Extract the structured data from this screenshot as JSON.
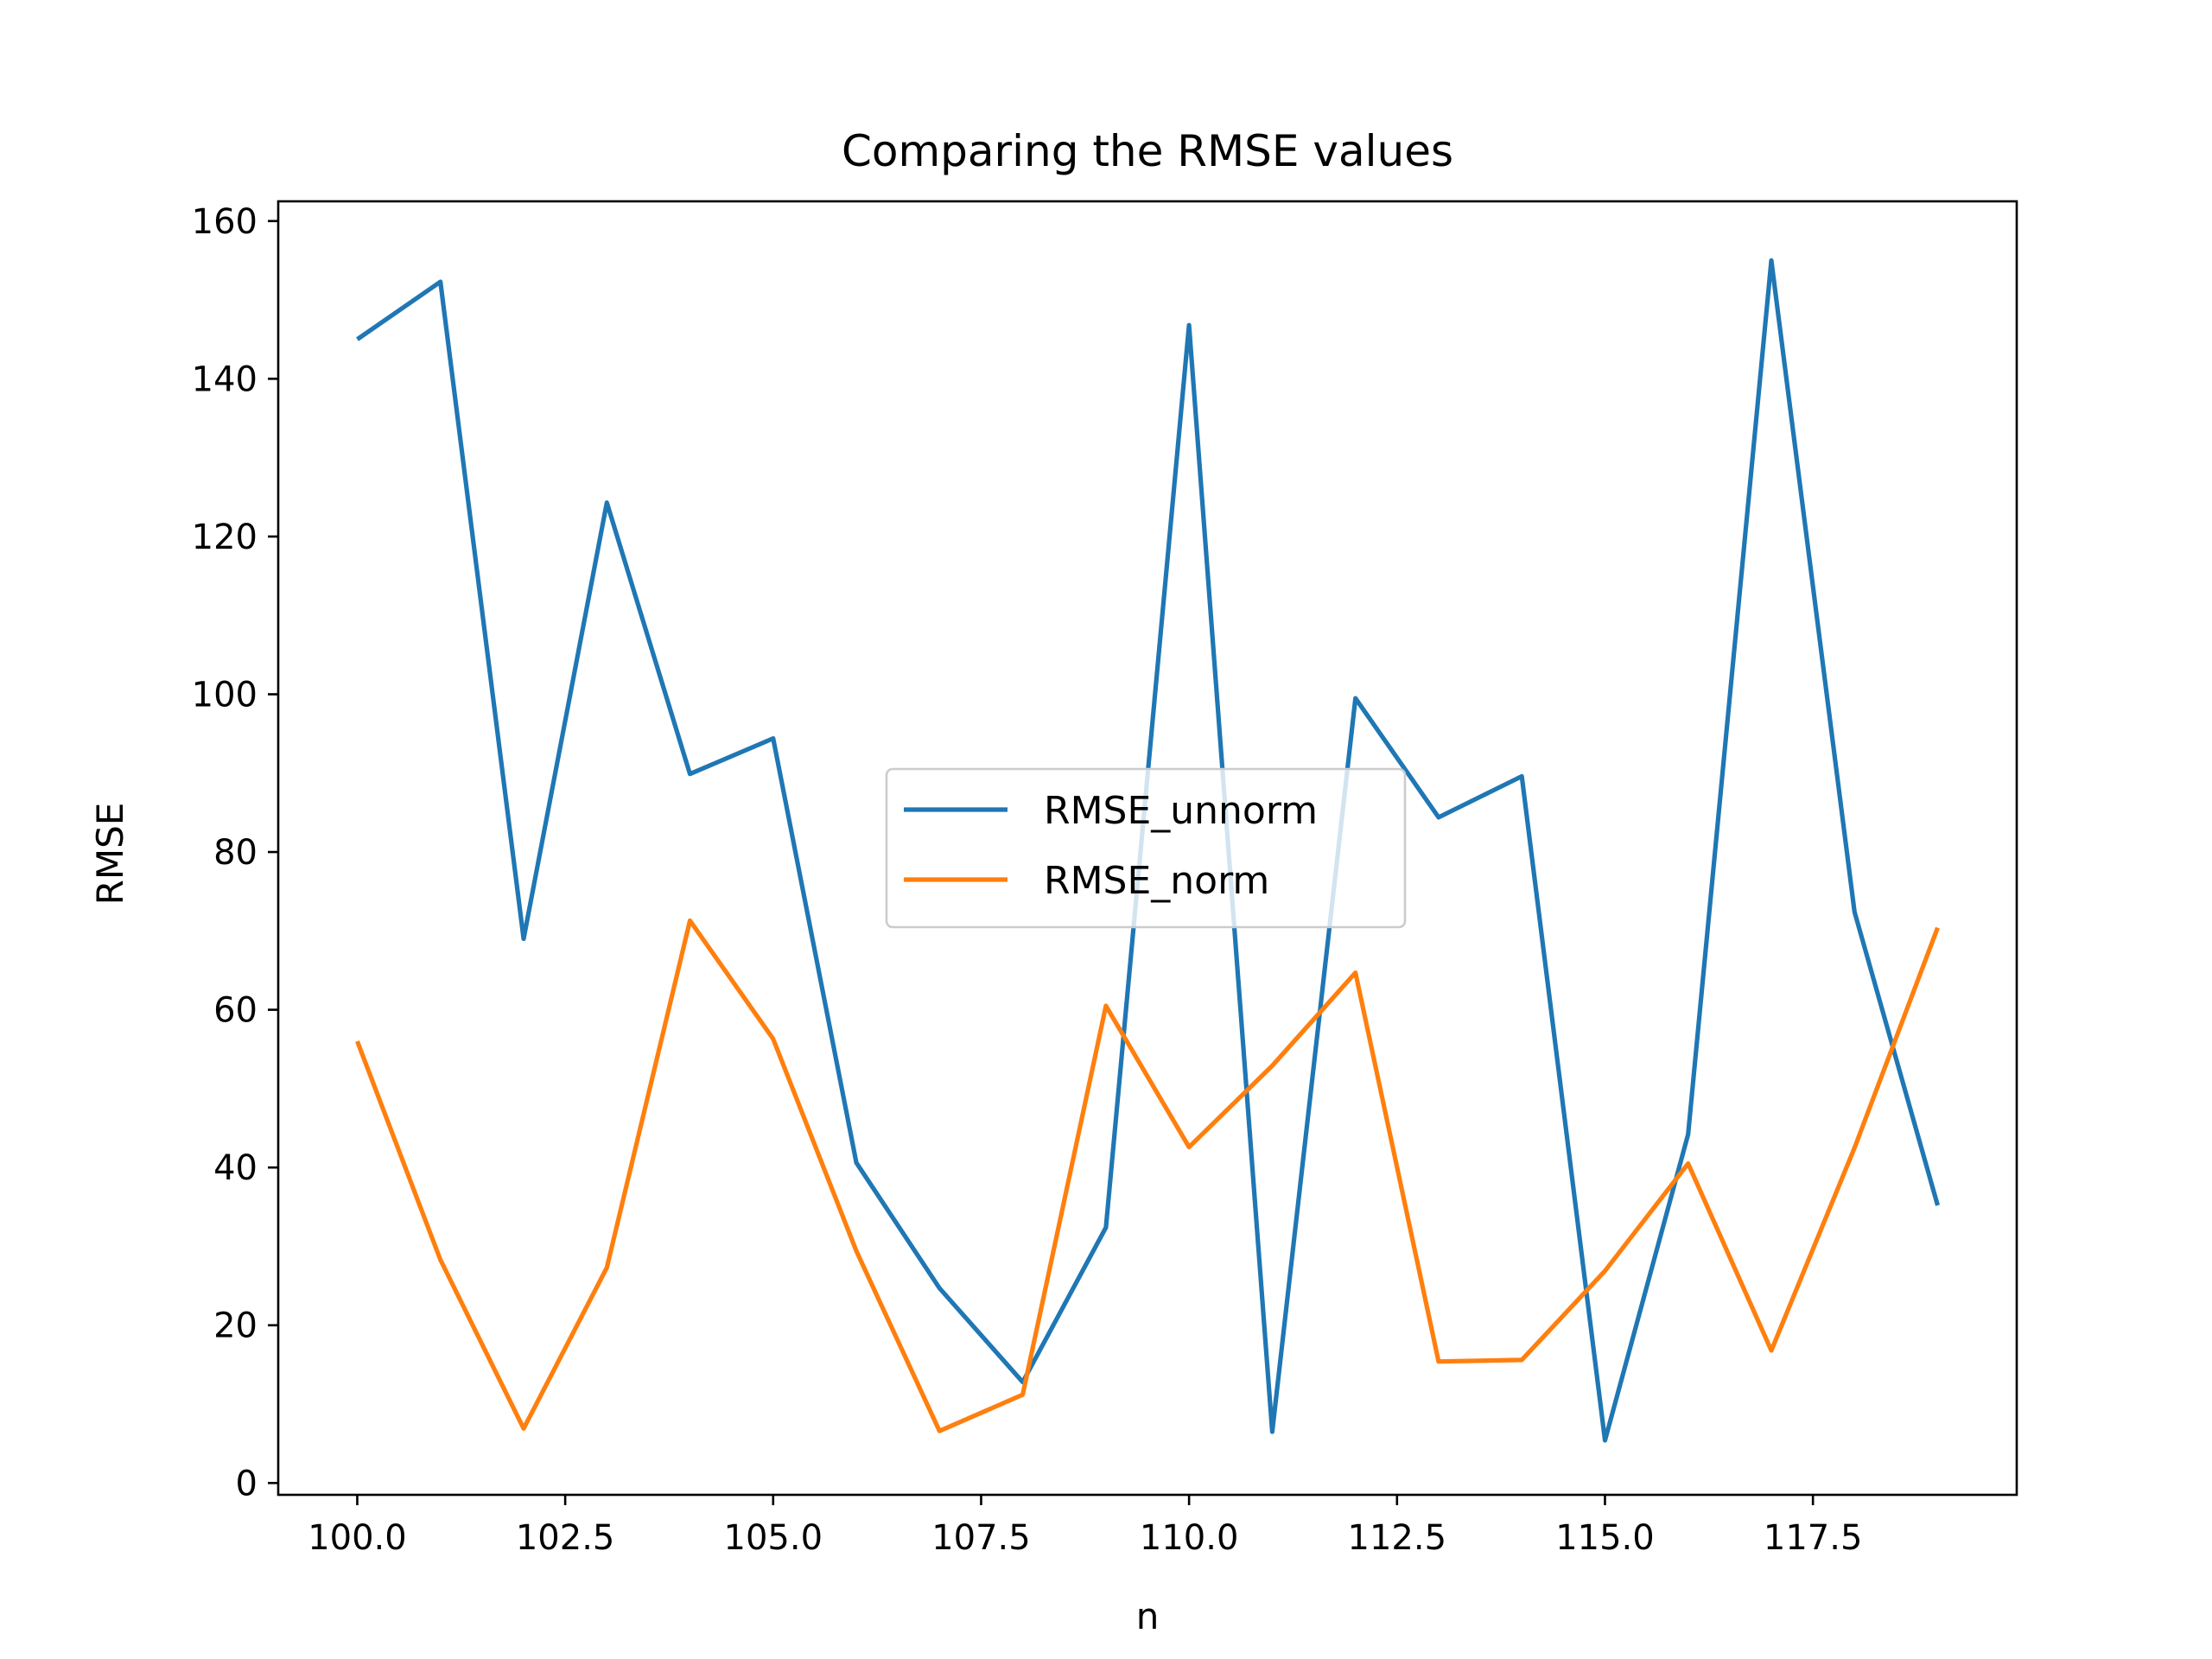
{
  "chart_data": {
    "type": "line",
    "title": "Comparing the RMSE values",
    "xlabel": "n",
    "ylabel": "RMSE",
    "xlim": [
      99.05,
      119.95
    ],
    "ylim": [
      -1.5,
      162.5
    ],
    "xticks": [
      "100.0",
      "102.5",
      "105.0",
      "107.5",
      "110.0",
      "112.5",
      "115.0",
      "117.5"
    ],
    "xtick_values": [
      100,
      102.5,
      105,
      107.5,
      110,
      112.5,
      115,
      117.5
    ],
    "yticks": [
      "0",
      "20",
      "40",
      "60",
      "80",
      "100",
      "120",
      "140",
      "160"
    ],
    "ytick_values": [
      0,
      20,
      40,
      60,
      80,
      100,
      120,
      140,
      160
    ],
    "grid": false,
    "legend": "center",
    "x": [
      100,
      101,
      102,
      103,
      104,
      105,
      106,
      107,
      108,
      109,
      110,
      111,
      112,
      113,
      114,
      115,
      116,
      117,
      118,
      119
    ],
    "series": [
      {
        "name": "RMSE_unnorm",
        "color": "#1f77b4",
        "values": [
          145.0,
          152.3,
          69.0,
          124.3,
          89.9,
          94.4,
          40.6,
          24.7,
          12.8,
          32.4,
          146.8,
          6.5,
          99.5,
          84.4,
          89.6,
          5.4,
          44.2,
          155.0,
          72.4,
          35.2
        ]
      },
      {
        "name": "RMSE_norm",
        "color": "#ff7f0e",
        "values": [
          56.0,
          28.3,
          6.9,
          27.3,
          71.3,
          56.3,
          29.4,
          6.6,
          11.2,
          60.5,
          42.6,
          52.9,
          64.7,
          15.4,
          15.6,
          26.9,
          40.5,
          16.8,
          42.5,
          70.4
        ]
      }
    ]
  }
}
